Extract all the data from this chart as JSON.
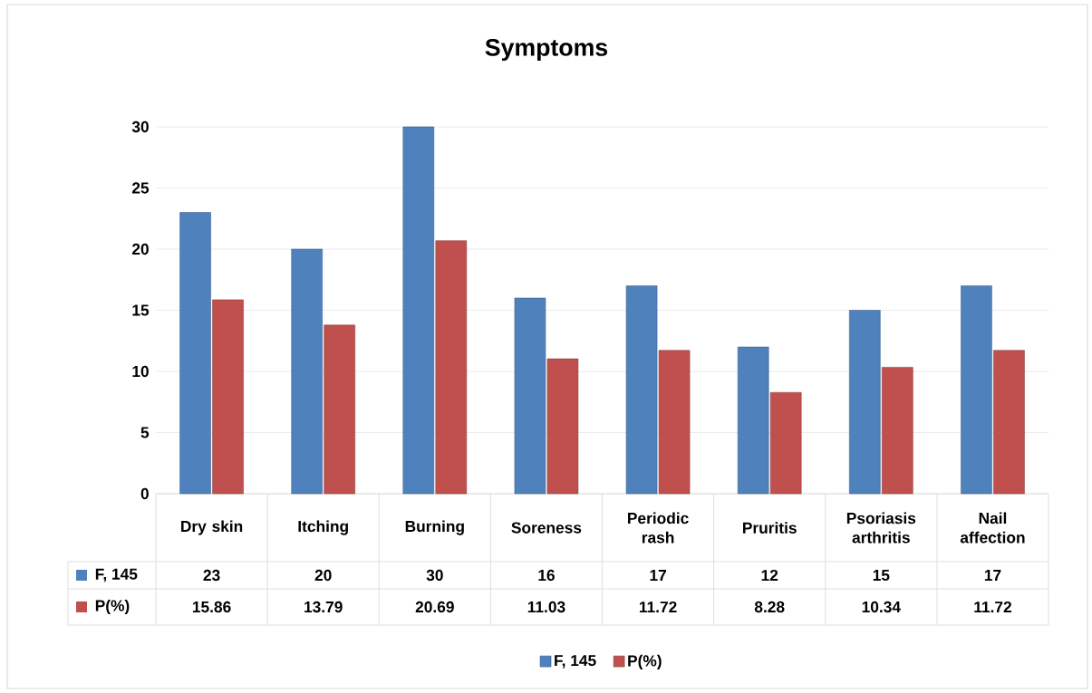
{
  "chart_data": {
    "type": "bar",
    "title": "Symptoms",
    "categories": [
      "Dry skin",
      "Itching",
      "Burning",
      "Soreness",
      "Periodic rash",
      "Pruritis",
      "Psoriasis arthritis",
      "Nail affection"
    ],
    "series": [
      {
        "name": "F, 145",
        "color": "#4f81bd",
        "values": [
          23,
          20,
          30,
          16,
          17,
          12,
          15,
          17
        ]
      },
      {
        "name": "P(%)",
        "color": "#c0504d",
        "values": [
          15.86,
          13.79,
          20.69,
          11.03,
          11.72,
          8.28,
          10.34,
          11.72
        ]
      }
    ],
    "ylim": [
      0,
      30
    ],
    "yticks": [
      0,
      5,
      10,
      15,
      20,
      25,
      30
    ],
    "grid": "y",
    "legend": "bottom",
    "data_labels": true
  }
}
